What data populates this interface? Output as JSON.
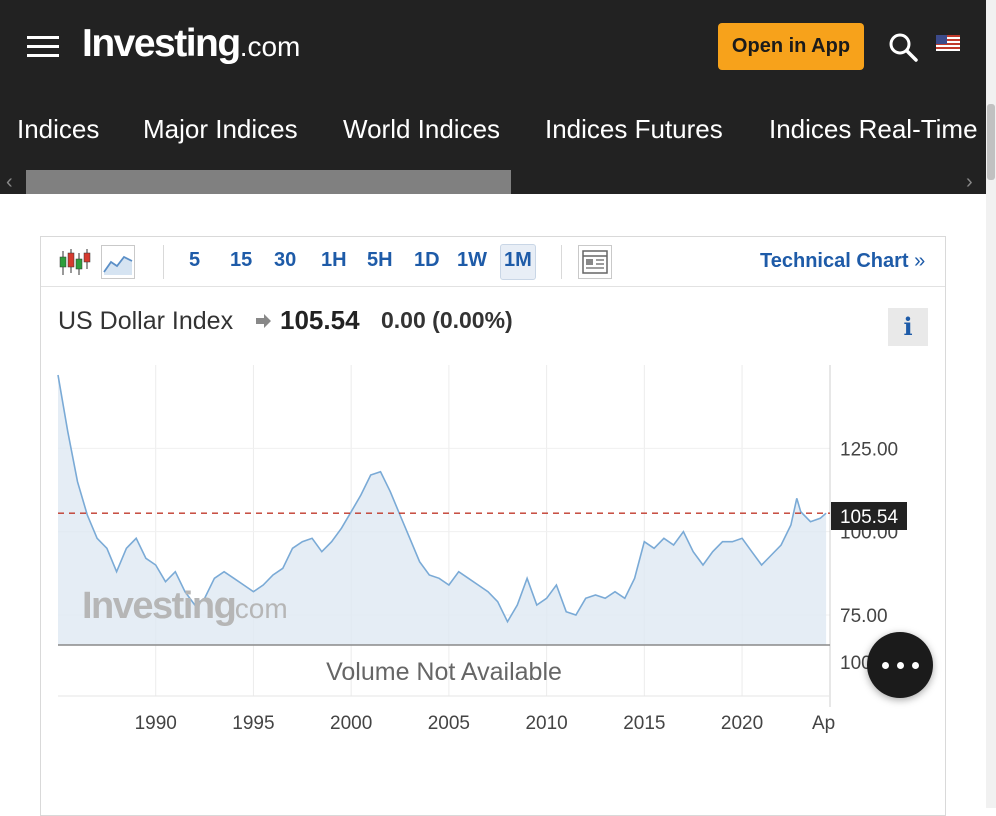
{
  "header": {
    "logo_main": "Investing",
    "logo_suffix": ".com",
    "open_app_label": "Open in App",
    "icons": [
      "hamburger-menu-icon",
      "search-icon",
      "us-flag-icon"
    ]
  },
  "nav": {
    "items": [
      "Indices",
      "Major Indices",
      "World Indices",
      "Indices Futures",
      "Indices Real-Time"
    ]
  },
  "toolbar": {
    "timeframes": [
      "5",
      "15",
      "30",
      "1H",
      "5H",
      "1D",
      "1W",
      "1M"
    ],
    "active_timeframe": "1M",
    "technical_chart_label": "Technical Chart",
    "technical_chart_arrow": "»"
  },
  "quote": {
    "name": "US Dollar Index",
    "price": "105.54",
    "change": "0.00",
    "change_pct": "(0.00%)",
    "direction_icon": "right-arrow-icon",
    "info_label": "i"
  },
  "chart": {
    "watermark_main": "Investing",
    "watermark_suffix": ".com",
    "volume_note": "Volume Not Available",
    "volume_axis_label": "100",
    "price_tag": "105.54",
    "last_tick_label": "Ap",
    "colors": {
      "line": "#7aaad6",
      "area": "#dfe9f3",
      "ref_line": "#c0392b",
      "tag_bg": "#222222"
    }
  },
  "chart_data": {
    "type": "area",
    "x": [
      1985.0,
      1985.5,
      1986.0,
      1986.5,
      1987.0,
      1987.5,
      1988.0,
      1988.5,
      1989.0,
      1989.5,
      1990.0,
      1990.5,
      1991.0,
      1991.5,
      1992.0,
      1992.5,
      1993.0,
      1993.5,
      1994.0,
      1994.5,
      1995.0,
      1995.5,
      1996.0,
      1996.5,
      1997.0,
      1997.5,
      1998.0,
      1998.5,
      1999.0,
      1999.5,
      2000.0,
      2000.5,
      2001.0,
      2001.5,
      2002.0,
      2002.5,
      2003.0,
      2003.5,
      2004.0,
      2004.5,
      2005.0,
      2005.5,
      2006.0,
      2006.5,
      2007.0,
      2007.5,
      2008.0,
      2008.5,
      2009.0,
      2009.5,
      2010.0,
      2010.5,
      2011.0,
      2011.5,
      2012.0,
      2012.5,
      2013.0,
      2013.5,
      2014.0,
      2014.5,
      2015.0,
      2015.5,
      2016.0,
      2016.5,
      2017.0,
      2017.5,
      2018.0,
      2018.5,
      2019.0,
      2019.5,
      2020.0,
      2020.5,
      2021.0,
      2021.5,
      2022.0,
      2022.5,
      2022.8,
      2023.0,
      2023.5,
      2024.0,
      2024.3
    ],
    "values": [
      147,
      130,
      115,
      105,
      98,
      95,
      88,
      95,
      98,
      92,
      90,
      85,
      88,
      82,
      78,
      80,
      86,
      88,
      86,
      84,
      82,
      84,
      87,
      89,
      95,
      97,
      98,
      94,
      97,
      101,
      106,
      111,
      117,
      118,
      112,
      105,
      98,
      91,
      87,
      86,
      84,
      88,
      86,
      84,
      82,
      79,
      73,
      78,
      86,
      78,
      80,
      84,
      76,
      75,
      80,
      81,
      80,
      82,
      80,
      86,
      97,
      95,
      98,
      96,
      100,
      94,
      90,
      94,
      97,
      97,
      98,
      94,
      90,
      93,
      96,
      102,
      110,
      106,
      103,
      104,
      105.54
    ],
    "ylim": [
      66,
      150
    ],
    "xlim": [
      1985,
      2024.5
    ],
    "y_ticks": [
      "125.00",
      "100.00",
      "75.00"
    ],
    "x_ticks": [
      "1990",
      "1995",
      "2000",
      "2005",
      "2010",
      "2015",
      "2020"
    ],
    "reference_line": 105.54,
    "grid": true
  }
}
